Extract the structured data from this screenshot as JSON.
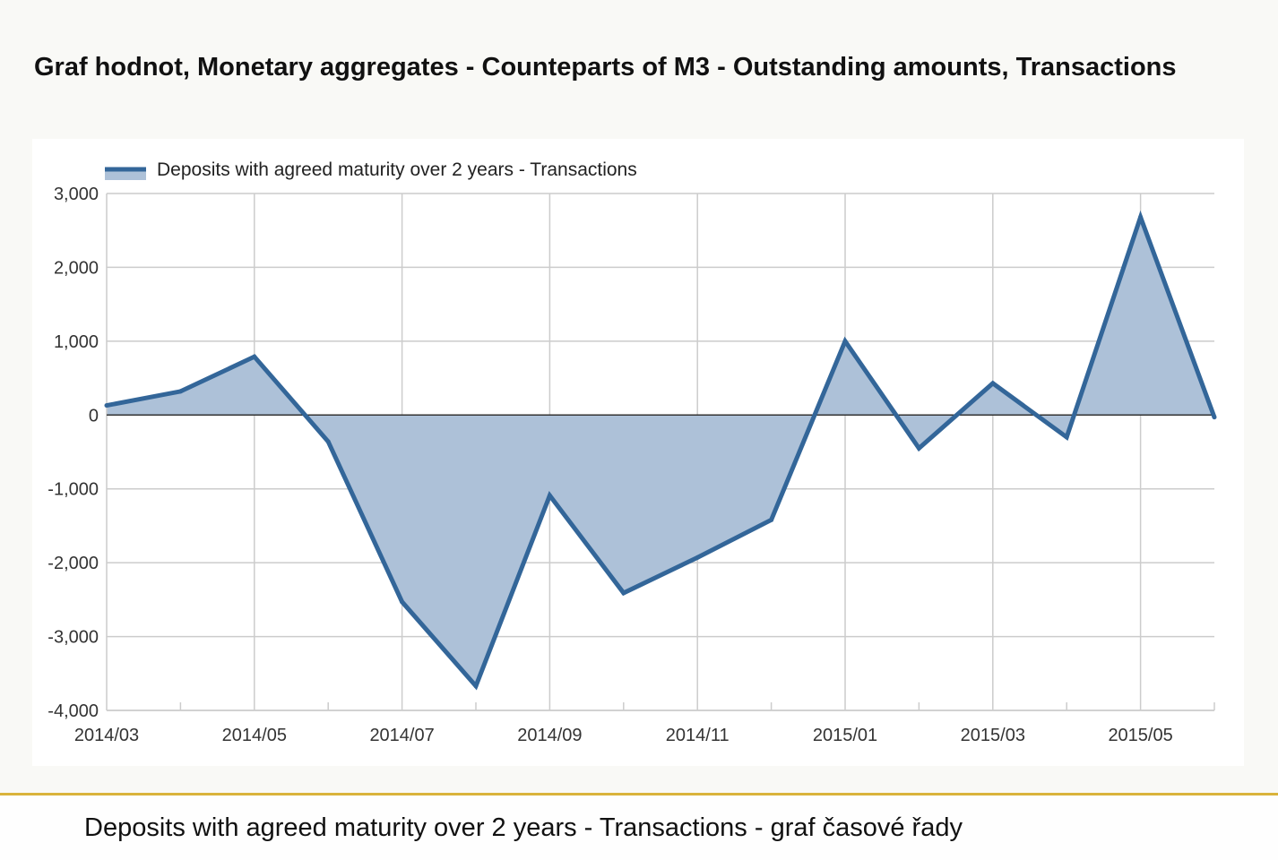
{
  "page": {
    "title": "Graf hodnot, Monetary aggregates - Counteparts of M3 - Outstanding amounts, Transactions",
    "caption": "Deposits with agreed maturity over 2 years - Transactions - graf časové řady"
  },
  "colors": {
    "line": "#336699",
    "area": "#adc1d8",
    "grid": "#cccccc",
    "zero_line": "#333333",
    "divider": "#d9b33b"
  },
  "chart_data": {
    "type": "area",
    "title": "",
    "xlabel": "",
    "ylabel": "",
    "ylim": [
      -4000,
      3000
    ],
    "yticks": [
      3000,
      2000,
      1000,
      0,
      -1000,
      -2000,
      -3000,
      -4000
    ],
    "ytick_labels": [
      "3,000",
      "2,000",
      "1,000",
      "0",
      "-1,000",
      "-2,000",
      "-3,000",
      "-4,000"
    ],
    "x": [
      "2014/03",
      "2014/04",
      "2014/05",
      "2014/06",
      "2014/07",
      "2014/08",
      "2014/09",
      "2014/10",
      "2014/11",
      "2014/12",
      "2015/01",
      "2015/02",
      "2015/03",
      "2015/04",
      "2015/05",
      "2015/06"
    ],
    "xtick_labels": [
      "2014/03",
      "2014/05",
      "2014/07",
      "2014/09",
      "2014/11",
      "2015/01",
      "2015/03",
      "2015/05"
    ],
    "grid": true,
    "legend_position": "top-left",
    "series": [
      {
        "name": "Deposits with agreed maturity over 2 years - Transactions",
        "values": [
          130,
          320,
          790,
          -360,
          -2530,
          -3670,
          -1090,
          -2410,
          -1930,
          -1420,
          1000,
          -450,
          430,
          -300,
          2680,
          -30
        ]
      }
    ]
  }
}
